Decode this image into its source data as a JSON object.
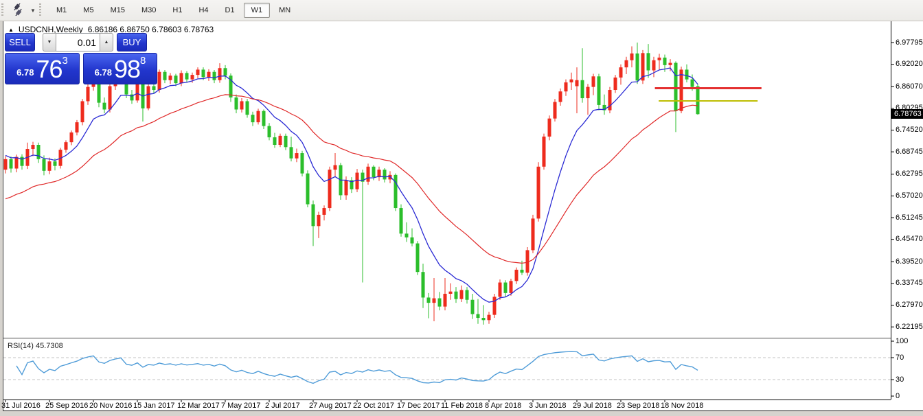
{
  "toolbar": {
    "timeframes": [
      "M1",
      "M5",
      "M15",
      "M30",
      "H1",
      "H4",
      "D1",
      "W1",
      "MN"
    ],
    "active_timeframe": "W1",
    "dropdown_glyph": "▼"
  },
  "chart": {
    "title": "USDCNH,Weekly",
    "ohlc": "6.86186 6.86750 6.78603 6.78763",
    "collapse_glyph": "▲"
  },
  "trade_panel": {
    "sell_label": "SELL",
    "buy_label": "BUY",
    "volume": "0.01",
    "spinner_down_glyph": "▼",
    "spinner_up_glyph": "▲",
    "sell_price": {
      "prefix": "6.78",
      "big": "76",
      "sup": "3"
    },
    "buy_price": {
      "prefix": "6.78",
      "big": "98",
      "sup": "8"
    }
  },
  "price_axis": {
    "ticks": [
      "6.97795",
      "6.92020",
      "6.86070",
      "6.80295",
      "6.74520",
      "6.68745",
      "6.62795",
      "6.57020",
      "6.51245",
      "6.45470",
      "6.39520",
      "6.33745",
      "6.27970",
      "6.22195"
    ],
    "current_price": "6.78763"
  },
  "time_axis": {
    "labels": [
      "31 Jul 2016",
      "25 Sep 2016",
      "20 Nov 2016",
      "15 Jan 2017",
      "12 Mar 2017",
      "7 May 2017",
      "2 Jul 2017",
      "27 Aug 2017",
      "22 Oct 2017",
      "17 Dec 2017",
      "11 Feb 2018",
      "8 Apr 2018",
      "3 Jun 2018",
      "29 Jul 2018",
      "23 Sep 2018",
      "18 Nov 2018"
    ]
  },
  "rsi_panel": {
    "label": "RSI(14) 45.7308",
    "scale": [
      "100",
      "70",
      "30",
      "0"
    ]
  },
  "chart_data": {
    "type": "candlestick",
    "symbol": "USDCNH",
    "timeframe": "Weekly",
    "title": "USDCNH,Weekly",
    "last_ohlc": {
      "open": 6.86186,
      "high": 6.8675,
      "low": 6.78603,
      "close": 6.78763
    },
    "colors": {
      "bull": "#ee2b1d",
      "bear": "#2bbe2b",
      "note": "red = up week, green = down week",
      "ma_fast": "#2a2ad4",
      "ma_slow": "#e02828",
      "rsi": "#4f9cd8",
      "level_dash": "#c3c3c3",
      "hline_red": "#e43030",
      "hline_yellow": "#bdbd00"
    },
    "price_ticks": [
      6.97795,
      6.9202,
      6.8607,
      6.80295,
      6.7452,
      6.68745,
      6.62795,
      6.5702,
      6.51245,
      6.4547,
      6.3952,
      6.33745,
      6.2797,
      6.22195
    ],
    "ylim": [
      6.2,
      6.99
    ],
    "x_labels_every_bars": 8,
    "x_labels": [
      "31 Jul 2016",
      "25 Sep 2016",
      "20 Nov 2016",
      "15 Jan 2017",
      "12 Mar 2017",
      "7 May 2017",
      "2 Jul 2017",
      "27 Aug 2017",
      "22 Oct 2017",
      "17 Dec 2017",
      "11 Feb 2018",
      "8 Apr 2018",
      "3 Jun 2018",
      "29 Jul 2018",
      "23 Sep 2018",
      "18 Nov 2018"
    ],
    "moving_averages": [
      {
        "name": "fast",
        "period": 10,
        "seed": 6.68
      },
      {
        "name": "slow",
        "period": 30,
        "seed": 6.555
      }
    ],
    "hlines": [
      {
        "price": 6.8565,
        "bar_from": 118.2,
        "bar_to": 137.6,
        "width": 3,
        "color_key": "hline_red"
      },
      {
        "price": 6.8227,
        "bar_from": 118.9,
        "bar_to": 136.9,
        "width": 2,
        "color_key": "hline_yellow"
      }
    ],
    "indicator": {
      "name": "RSI",
      "period": 14,
      "value": 45.7308,
      "levels": [
        70,
        30
      ],
      "range": [
        0,
        100
      ]
    },
    "candles": [
      [
        6.64,
        6.676,
        6.63,
        6.668
      ],
      [
        6.668,
        6.675,
        6.632,
        6.643
      ],
      [
        6.643,
        6.68,
        6.633,
        6.674
      ],
      [
        6.674,
        6.681,
        6.64,
        6.65
      ],
      [
        6.65,
        6.712,
        6.642,
        6.695
      ],
      [
        6.695,
        6.714,
        6.676,
        6.706
      ],
      [
        6.706,
        6.712,
        6.658,
        6.668
      ],
      [
        6.668,
        6.678,
        6.625,
        6.637
      ],
      [
        6.637,
        6.672,
        6.628,
        6.662
      ],
      [
        6.662,
        6.67,
        6.638,
        6.65
      ],
      [
        6.65,
        6.698,
        6.643,
        6.693
      ],
      [
        6.693,
        6.718,
        6.685,
        6.713
      ],
      [
        6.713,
        6.744,
        6.705,
        6.739
      ],
      [
        6.739,
        6.772,
        6.731,
        6.766
      ],
      [
        6.766,
        6.828,
        6.758,
        6.822
      ],
      [
        6.822,
        6.868,
        6.812,
        6.86
      ],
      [
        6.86,
        6.896,
        6.85,
        6.888
      ],
      [
        6.888,
        6.893,
        6.806,
        6.818
      ],
      [
        6.818,
        6.832,
        6.79,
        6.8
      ],
      [
        6.8,
        6.87,
        6.792,
        6.862
      ],
      [
        6.862,
        6.906,
        6.852,
        6.9
      ],
      [
        6.9,
        6.934,
        6.882,
        6.928
      ],
      [
        6.872,
        6.88,
        6.83,
        6.84
      ],
      [
        6.84,
        6.852,
        6.815,
        6.824
      ],
      [
        6.824,
        6.88,
        6.818,
        6.876
      ],
      [
        6.876,
        6.882,
        6.768,
        6.803
      ],
      [
        6.803,
        6.87,
        6.798,
        6.862
      ],
      [
        6.862,
        6.878,
        6.842,
        6.852
      ],
      [
        6.852,
        6.906,
        6.845,
        6.9
      ],
      [
        6.9,
        6.905,
        6.87,
        6.878
      ],
      [
        6.878,
        6.897,
        6.868,
        6.89
      ],
      [
        6.89,
        6.895,
        6.862,
        6.87
      ],
      [
        6.87,
        6.904,
        6.862,
        6.897
      ],
      [
        6.897,
        6.902,
        6.872,
        6.88
      ],
      [
        6.88,
        6.898,
        6.871,
        6.892
      ],
      [
        6.892,
        6.912,
        6.883,
        6.906
      ],
      [
        6.906,
        6.912,
        6.878,
        6.886
      ],
      [
        6.886,
        6.907,
        6.876,
        6.9
      ],
      [
        6.9,
        6.905,
        6.87,
        6.878
      ],
      [
        6.878,
        6.923,
        6.871,
        6.91
      ],
      [
        6.91,
        6.918,
        6.88,
        6.89
      ],
      [
        6.89,
        6.896,
        6.82,
        6.832
      ],
      [
        6.832,
        6.84,
        6.79,
        6.8
      ],
      [
        6.8,
        6.83,
        6.792,
        6.822
      ],
      [
        6.822,
        6.828,
        6.778,
        6.786
      ],
      [
        6.786,
        6.794,
        6.756,
        6.766
      ],
      [
        6.766,
        6.802,
        6.76,
        6.796
      ],
      [
        6.796,
        6.8,
        6.748,
        6.756
      ],
      [
        6.756,
        6.764,
        6.718,
        6.726
      ],
      [
        6.726,
        6.738,
        6.698,
        6.706
      ],
      [
        6.706,
        6.736,
        6.7,
        6.73
      ],
      [
        6.73,
        6.736,
        6.692,
        6.7
      ],
      [
        6.7,
        6.728,
        6.662,
        6.67
      ],
      [
        6.67,
        6.696,
        6.66,
        6.684
      ],
      [
        6.684,
        6.69,
        6.622,
        6.63
      ],
      [
        6.63,
        6.638,
        6.54,
        6.548
      ],
      [
        6.548,
        6.558,
        6.437,
        6.49
      ],
      [
        6.49,
        6.528,
        6.458,
        6.52
      ],
      [
        6.52,
        6.545,
        6.505,
        6.538
      ],
      [
        6.538,
        6.648,
        6.53,
        6.64
      ],
      [
        6.64,
        6.684,
        6.622,
        6.652
      ],
      [
        6.652,
        6.658,
        6.56,
        6.572
      ],
      [
        6.572,
        6.622,
        6.56,
        6.612
      ],
      [
        6.612,
        6.62,
        6.578,
        6.588
      ],
      [
        6.588,
        6.642,
        6.58,
        6.632
      ],
      [
        6.632,
        6.64,
        6.34,
        6.608
      ],
      [
        6.608,
        6.656,
        6.6,
        6.648
      ],
      [
        6.648,
        6.652,
        6.612,
        6.62
      ],
      [
        6.62,
        6.648,
        6.61,
        6.64
      ],
      [
        6.64,
        6.644,
        6.606,
        6.614
      ],
      [
        6.614,
        6.636,
        6.604,
        6.626
      ],
      [
        6.626,
        6.63,
        6.53,
        6.538
      ],
      [
        6.538,
        6.548,
        6.462,
        6.47
      ],
      [
        6.47,
        6.5,
        6.448,
        6.46
      ],
      [
        6.46,
        6.484,
        6.436,
        6.444
      ],
      [
        6.444,
        6.45,
        6.36,
        6.368
      ],
      [
        6.368,
        6.39,
        6.272,
        6.3
      ],
      [
        6.3,
        6.312,
        6.245,
        6.286
      ],
      [
        6.286,
        6.352,
        6.237,
        6.298
      ],
      [
        6.298,
        6.315,
        6.266,
        6.276
      ],
      [
        6.276,
        6.352,
        6.266,
        6.31
      ],
      [
        6.31,
        6.338,
        6.294,
        6.316
      ],
      [
        6.316,
        6.328,
        6.286,
        6.296
      ],
      [
        6.296,
        6.332,
        6.288,
        6.32
      ],
      [
        6.32,
        6.328,
        6.284,
        6.294
      ],
      [
        6.294,
        6.31,
        6.243,
        6.256
      ],
      [
        6.256,
        6.296,
        6.23,
        6.246
      ],
      [
        6.246,
        6.28,
        6.228,
        6.24
      ],
      [
        6.24,
        6.262,
        6.23,
        6.254
      ],
      [
        6.254,
        6.31,
        6.246,
        6.302
      ],
      [
        6.302,
        6.348,
        6.294,
        6.34
      ],
      [
        6.34,
        6.346,
        6.302,
        6.312
      ],
      [
        6.312,
        6.35,
        6.305,
        6.344
      ],
      [
        6.344,
        6.38,
        6.336,
        6.374
      ],
      [
        6.374,
        6.398,
        6.36,
        6.366
      ],
      [
        6.366,
        6.434,
        6.358,
        6.426
      ],
      [
        6.426,
        6.52,
        6.418,
        6.51
      ],
      [
        6.51,
        6.66,
        6.502,
        6.648
      ],
      [
        6.648,
        6.736,
        6.64,
        6.728
      ],
      [
        6.728,
        6.784,
        6.718,
        6.776
      ],
      [
        6.776,
        6.828,
        6.768,
        6.82
      ],
      [
        6.82,
        6.856,
        6.81,
        6.848
      ],
      [
        6.848,
        6.88,
        6.836,
        6.872
      ],
      [
        6.872,
        6.898,
        6.852,
        6.88
      ],
      [
        6.862,
        6.912,
        6.79,
        6.878
      ],
      [
        6.878,
        6.963,
        6.818,
        6.83
      ],
      [
        6.83,
        6.868,
        6.786,
        6.86
      ],
      [
        6.86,
        6.895,
        6.838,
        6.888
      ],
      [
        6.888,
        6.895,
        6.798,
        6.812
      ],
      [
        6.812,
        6.84,
        6.786,
        6.798
      ],
      [
        6.798,
        6.86,
        6.79,
        6.852
      ],
      [
        6.852,
        6.892,
        6.844,
        6.885
      ],
      [
        6.885,
        6.92,
        6.866,
        6.912
      ],
      [
        6.912,
        6.94,
        6.894,
        6.931
      ],
      [
        6.931,
        6.968,
        6.912,
        6.949
      ],
      [
        6.949,
        6.978,
        6.868,
        6.877
      ],
      [
        6.877,
        6.958,
        6.868,
        6.95
      ],
      [
        6.95,
        6.974,
        6.884,
        6.904
      ],
      [
        6.904,
        6.94,
        6.886,
        6.931
      ],
      [
        6.931,
        6.948,
        6.906,
        6.938
      ],
      [
        6.938,
        6.946,
        6.9,
        6.918
      ],
      [
        6.918,
        6.934,
        6.902,
        6.924
      ],
      [
        6.924,
        6.928,
        6.74,
        6.796
      ],
      [
        6.796,
        6.914,
        6.79,
        6.906
      ],
      [
        6.906,
        6.92,
        6.872,
        6.88
      ],
      [
        6.88,
        6.893,
        6.85,
        6.86
      ],
      [
        6.86186,
        6.8675,
        6.78603,
        6.78763
      ]
    ]
  }
}
